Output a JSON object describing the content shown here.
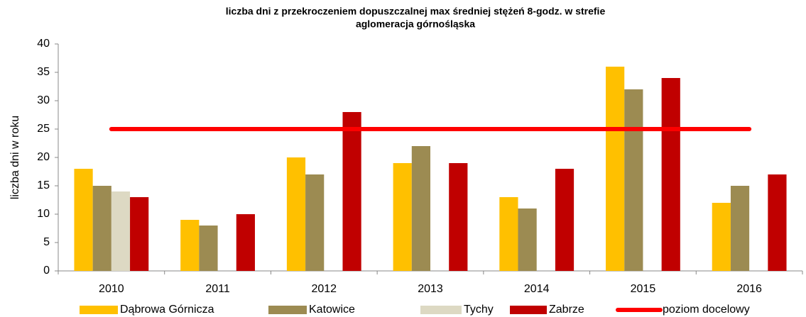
{
  "chart_data": {
    "type": "bar",
    "title": "liczba dni z przekroczeniem dopuszczalnej max średniej stężeń 8-godz. w strefie",
    "subtitle": "aglomeracja górnośląska",
    "y_label": "liczba dni w roku",
    "categories": [
      "2010",
      "2011",
      "2012",
      "2013",
      "2014",
      "2015",
      "2016"
    ],
    "series": [
      {
        "name": "Dąbrowa Górnicza",
        "color": "#FFC000",
        "values": [
          18,
          9,
          20,
          19,
          13,
          36,
          12
        ]
      },
      {
        "name": "Katowice",
        "color": "#9C8B52",
        "values": [
          15,
          8,
          17,
          22,
          11,
          32,
          15
        ]
      },
      {
        "name": "Tychy",
        "color": "#DDD9C3",
        "values": [
          14,
          null,
          null,
          null,
          null,
          null,
          null
        ]
      },
      {
        "name": "Zabrze",
        "color": "#C00000",
        "values": [
          13,
          10,
          28,
          19,
          18,
          34,
          17
        ]
      },
      {
        "name": "poziom docelowy",
        "color": "#FF0000",
        "type": "line",
        "values": [
          25,
          25,
          25,
          25,
          25,
          25,
          25
        ]
      }
    ],
    "ylim": [
      0,
      40
    ],
    "yticks": [
      0,
      5,
      10,
      15,
      20,
      25,
      30,
      35,
      40
    ],
    "legend": "bottom"
  }
}
